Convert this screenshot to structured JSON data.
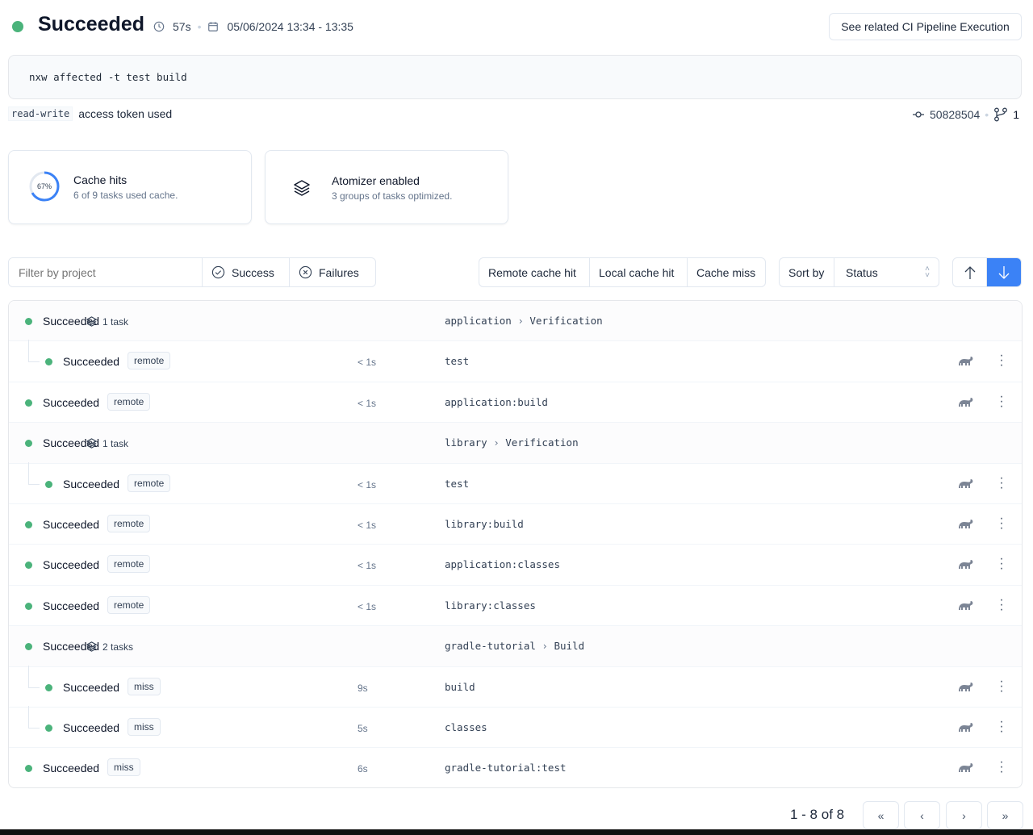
{
  "header": {
    "status": "Succeeded",
    "duration": "57s",
    "date_range": "05/06/2024 13:34 - 13:35",
    "related_button": "See related CI Pipeline Execution",
    "status_color": "#4bb37b"
  },
  "command": "nxw affected -t test build",
  "token": {
    "type": "read-write",
    "label": "access token used"
  },
  "commit": {
    "sha": "50828504",
    "branches": "1"
  },
  "cards": {
    "cache": {
      "percent_label": "67%",
      "percent": 67,
      "title": "Cache hits",
      "subtitle": "6 of 9 tasks used cache."
    },
    "atomizer": {
      "title": "Atomizer enabled",
      "subtitle": "3 groups of tasks optimized."
    }
  },
  "filters": {
    "placeholder": "Filter by project",
    "success": "Success",
    "failures": "Failures",
    "cache": [
      "Remote cache hit",
      "Local cache hit",
      "Cache miss"
    ],
    "sort_label": "Sort by",
    "sort_value": "Status"
  },
  "rows": [
    {
      "kind": "group",
      "status": "Succeeded",
      "count": "1 task",
      "project": "application",
      "target": "Verification"
    },
    {
      "kind": "child",
      "status": "Succeeded",
      "cache": "remote",
      "duration": "< 1s",
      "target": "test"
    },
    {
      "kind": "task",
      "status": "Succeeded",
      "cache": "remote",
      "duration": "< 1s",
      "target": "application:build"
    },
    {
      "kind": "group",
      "status": "Succeeded",
      "count": "1 task",
      "project": "library",
      "target": "Verification"
    },
    {
      "kind": "child",
      "status": "Succeeded",
      "cache": "remote",
      "duration": "< 1s",
      "target": "test"
    },
    {
      "kind": "task",
      "status": "Succeeded",
      "cache": "remote",
      "duration": "< 1s",
      "target": "library:build"
    },
    {
      "kind": "task",
      "status": "Succeeded",
      "cache": "remote",
      "duration": "< 1s",
      "target": "application:classes"
    },
    {
      "kind": "task",
      "status": "Succeeded",
      "cache": "remote",
      "duration": "< 1s",
      "target": "library:classes"
    },
    {
      "kind": "group",
      "status": "Succeeded",
      "count": "2 tasks",
      "project": "gradle-tutorial",
      "target": "Build"
    },
    {
      "kind": "child",
      "status": "Succeeded",
      "cache": "miss",
      "duration": "9s",
      "target": "build"
    },
    {
      "kind": "child",
      "status": "Succeeded",
      "cache": "miss",
      "duration": "5s",
      "target": "classes"
    },
    {
      "kind": "task",
      "status": "Succeeded",
      "cache": "miss",
      "duration": "6s",
      "target": "gradle-tutorial:test"
    }
  ],
  "pagination": {
    "label": "1 - 8 of 8"
  }
}
